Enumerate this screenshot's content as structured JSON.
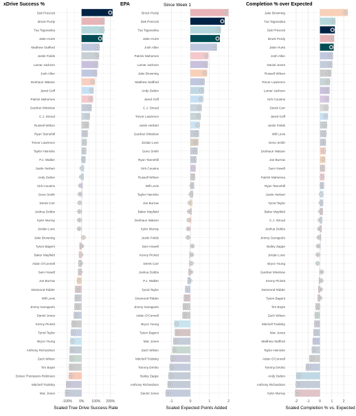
{
  "subtitle": "Since Week 1",
  "chart_data": [
    {
      "type": "bar",
      "orientation": "horizontal",
      "title": "xDrive Success %",
      "xlabel": "Scaled True Drive Success Rate",
      "xlim": [
        -170,
        230
      ],
      "xticks": [
        -100,
        0,
        100,
        200
      ],
      "xtick_labels": [
        "-100%",
        "0%",
        "100%",
        "200%"
      ],
      "grid": true,
      "categories": [
        "Dak Prescott",
        "Brock Purdy",
        "Tua Tagovailoa",
        "Jalen Hurts",
        "Matthew Stafford",
        "Justin Fields",
        "Lamar Jackson",
        "Josh Allen",
        "Deshaun Watson",
        "Jared Goff",
        "Patrick Mahomes",
        "Gardner Minshew",
        "C.J. Stroud",
        "Russell Wilson",
        "Ryan Tannehill",
        "Trevor Lawrence",
        "Taylor Heinicke",
        "P.J. Walker",
        "Justin Herbert",
        "Andy Dalton",
        "Kirk Cousins",
        "Geno Smith",
        "Derek Carr",
        "Joshua Dobbs",
        "Kyler Murray",
        "Jordan Love",
        "Jake Browning",
        "Tyson Bagent",
        "Baker Mayfield",
        "Aidan O'Connell",
        "Sam Howell",
        "Joe Burrow",
        "Desmond Ridder",
        "Will Levis",
        "Jimmy Garoppolo",
        "Daniel Jones",
        "Kenny Pickett",
        "Tyrod Taylor",
        "Bryce Young",
        "Anthony Richardson",
        "Zach Wilson",
        "Tim Boyle",
        "Dorian Thompson-Robinson",
        "Mitchell Trubisky",
        "Mac Jones"
      ],
      "values": [
        215,
        160,
        158,
        145,
        125,
        122,
        115,
        108,
        93,
        85,
        80,
        70,
        58,
        52,
        43,
        37,
        33,
        28,
        18,
        15,
        8,
        5,
        3,
        2,
        1,
        0,
        -3,
        -15,
        -20,
        -22,
        -25,
        -33,
        -45,
        -48,
        -50,
        -55,
        -70,
        -75,
        -80,
        -83,
        -85,
        -88,
        -90,
        -108,
        -115
      ],
      "colors": [
        "#002244",
        "#e8b4b8",
        "#b4d8dc",
        "#004c54",
        "#c0c8e0",
        "#c8d0d4",
        "#c8c0dc",
        "#c0c8e0",
        "#f8cfc0",
        "#c8e0f4",
        "#f4c8cc",
        "#c4ccd8",
        "#c8d4dc",
        "#cccccc",
        "#c4ccd8",
        "#c8d4d8",
        "#c8d0d8",
        "#bcd0e0",
        "#cce4f4",
        "#c0d8e4",
        "#d8c8e4",
        "#c4ccd8",
        "#d8d8d8",
        "#d4c4c8",
        "#e0c4c8",
        "#d8ccc0",
        "#f8d0b8",
        "#d4c4c4",
        "#f0d0c8",
        "#cccccc",
        "#d8c8cc",
        "#f8d8b8",
        "#d4c4c8",
        "#c8ccd8",
        "#cccccc",
        "#c4ccdc",
        "#cccccc",
        "#c8d0e4",
        "#c8e4f0",
        "#c4ccd8",
        "#c8d8d0",
        "#cccccc",
        "#f8c8b8",
        "#c8c8d8",
        "#c4ccd8"
      ]
    },
    {
      "type": "bar",
      "orientation": "horizontal",
      "title": "EPA",
      "xlabel": "Scaled Expected Points Added",
      "xlim": [
        -1.55,
        2.2
      ],
      "xticks": [
        -1,
        0,
        1,
        2
      ],
      "xtick_labels": [
        "-1",
        "0",
        "1",
        "2"
      ],
      "grid": true,
      "categories": [
        "Brock Purdy",
        "Dak Prescott",
        "Tua Tagovailoa",
        "Jalen Hurts",
        "Josh Allen",
        "Patrick Mahomes",
        "Lamar Jackson",
        "Jake Browning",
        "Matthew Stafford",
        "Andy Dalton",
        "Jared Goff",
        "C.J. Stroud",
        "Trevor Lawrence",
        "Justin Herbert",
        "Gardner Minshew",
        "Jordan Love",
        "Geno Smith",
        "Ryan Tannehill",
        "Kirk Cousins",
        "Russell Wilson",
        "Will Levis",
        "Taylor Heinicke",
        "Joe Burrow",
        "Baker Mayfield",
        "Deshaun Watson",
        "Kyler Murray",
        "Justin Fields",
        "Sam Howell",
        "Kenny Pickett",
        "Derek Carr",
        "Joshua Dobbs",
        "P.J. Walker",
        "Tyrod Taylor",
        "Desmond Ridder",
        "Jimmy Garoppolo",
        "Aidan O'Connell",
        "Bryce Young",
        "Tyson Bagent",
        "Mac Jones",
        "Zach Wilson",
        "Mitchell Trubisky",
        "Tommy DeVito",
        "Bailey Zappe",
        "Anthony Richardson",
        "Daniel Jones"
      ],
      "values": [
        2.0,
        1.8,
        1.6,
        1.55,
        1.4,
        0.95,
        0.92,
        0.88,
        0.75,
        0.72,
        0.68,
        0.6,
        0.55,
        0.5,
        0.45,
        0.42,
        0.38,
        0.32,
        0.28,
        0.25,
        0.2,
        0.15,
        0.1,
        0.07,
        0.05,
        0.02,
        0.0,
        -0.02,
        -0.05,
        -0.07,
        -0.1,
        -0.15,
        -0.28,
        -0.35,
        -0.4,
        -0.42,
        -0.85,
        -0.82,
        -0.9,
        -0.95,
        -1.05,
        -1.1,
        -1.15,
        -1.2,
        -1.3
      ],
      "colors": [
        "#e8b4b8",
        "#002244",
        "#b4d8dc",
        "#004c54",
        "#c0c8e0",
        "#f4c8cc",
        "#c8c0dc",
        "#f8d0b8",
        "#c0c8e0",
        "#c0d8e4",
        "#c8e0f4",
        "#c8d4dc",
        "#c8d4d8",
        "#cce4f4",
        "#c4ccd8",
        "#d8ccc0",
        "#c4ccd8",
        "#c4ccd8",
        "#d8c8e4",
        "#cccccc",
        "#c8ccd8",
        "#c8d0d8",
        "#f8d8b8",
        "#d4c4c8",
        "#f8cfc0",
        "#e0c4c8",
        "#c8d0d4",
        "#d8c8cc",
        "#cccccc",
        "#d8d8d8",
        "#d4c4c8",
        "#bcd0e0",
        "#c8d0e4",
        "#d4c4c8",
        "#cccccc",
        "#cccccc",
        "#c8e4f0",
        "#d4c4c4",
        "#c4ccd8",
        "#c8d8d0",
        "#c8c8d8",
        "#c4ccdc",
        "#c4ccd8",
        "#c4ccd8",
        "#c4ccdc"
      ]
    },
    {
      "type": "bar",
      "orientation": "horizontal",
      "title": "Completion % over Expected",
      "xlabel": "Scaled Completion % vs. Expected",
      "xlim": [
        -2.75,
        2.8
      ],
      "xticks": [
        -2,
        -1,
        0,
        1,
        2
      ],
      "xtick_labels": [
        "-2",
        "-1",
        "0",
        "1",
        "2"
      ],
      "grid": true,
      "categories": [
        "Jake Browning",
        "Tua Tagovailoa",
        "Dak Prescott",
        "Brock Purdy",
        "Jalen Hurts",
        "Josh Allen",
        "Daniel Jones",
        "Russell Wilson",
        "Trevor Lawrence",
        "Lamar Jackson",
        "Kirk Cousins",
        "Derek Carr",
        "Jared Goff",
        "Justin Fields",
        "Will Levis",
        "Geno Smith",
        "Deshaun Watson",
        "Joe Burrow",
        "Sam Howell",
        "Patrick Mahomes",
        "Ryan Tannehill",
        "Justin Herbert",
        "Tyrod Taylor",
        "Baker Mayfield",
        "C.J. Stroud",
        "Joshua Dobbs",
        "Jimmy Garoppolo",
        "Bailey Zappe",
        "Jordan Love",
        "Bryce Young",
        "Gardner Minshew",
        "Kenny Pickett",
        "Desmond Ridder",
        "Tyson Bagent",
        "Tim Boyle",
        "Zach Wilson",
        "Mitchell Trubisky",
        "Mac Jones",
        "Matthew Stafford",
        "Taylor Heinicke",
        "Aidan O'Connell",
        "Tommy DeVito",
        "Andy Dalton",
        "Anthony Richardson",
        "Kyler Murray"
      ],
      "values": [
        2.35,
        1.3,
        1.25,
        1.2,
        1.15,
        1.1,
        1.05,
        0.95,
        0.85,
        0.82,
        0.78,
        0.72,
        0.68,
        0.6,
        0.55,
        0.5,
        0.48,
        0.45,
        0.42,
        0.38,
        0.35,
        0.3,
        0.28,
        0.25,
        0.2,
        0.15,
        0.1,
        0.05,
        0.02,
        0.0,
        -0.05,
        -0.1,
        -0.15,
        -0.2,
        -0.38,
        -0.45,
        -0.48,
        -0.55,
        -0.62,
        -0.7,
        -0.9,
        -1.2,
        -2.0,
        -2.05,
        -2.1
      ],
      "colors": [
        "#f8d0b8",
        "#b4d8dc",
        "#002244",
        "#e8b4b8",
        "#004c54",
        "#c0c8e0",
        "#c4ccdc",
        "#cccccc",
        "#c8d4d8",
        "#c8c0dc",
        "#d8c8e4",
        "#d8d8d8",
        "#c8e0f4",
        "#c8d0d4",
        "#c8ccd8",
        "#c4ccd8",
        "#f8cfc0",
        "#f8d8b8",
        "#d8c8cc",
        "#f4c8cc",
        "#c4ccd8",
        "#cce4f4",
        "#c8d0e4",
        "#d4c4c8",
        "#c8d4dc",
        "#d4c4c8",
        "#cccccc",
        "#c4ccd8",
        "#d8ccc0",
        "#c8e4f0",
        "#c4ccd8",
        "#cccccc",
        "#d4c4c8",
        "#d4c4c4",
        "#cccccc",
        "#c8d8d0",
        "#c8c8d8",
        "#c4ccd8",
        "#c0c8e0",
        "#c8d0d8",
        "#cccccc",
        "#c4ccdc",
        "#c0d8e4",
        "#c4ccd8",
        "#e0c4c8"
      ]
    }
  ]
}
